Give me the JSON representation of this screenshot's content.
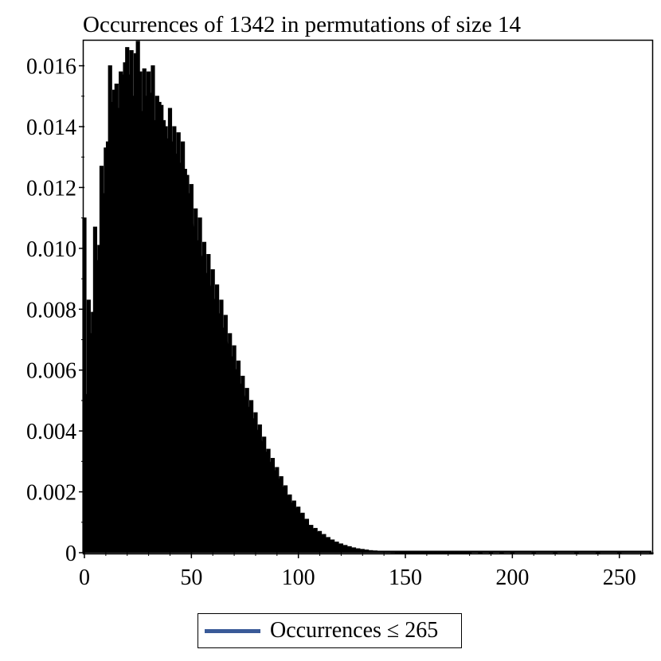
{
  "chart_data": {
    "type": "bar",
    "title": "Occurrences of 1342 in permutations of size 14",
    "xlabel": "",
    "ylabel": "",
    "xlim": [
      0,
      265
    ],
    "ylim": [
      0,
      0.0168
    ],
    "x_ticks": [
      0,
      50,
      100,
      150,
      200,
      250
    ],
    "x_tick_labels": [
      "0",
      "50",
      "100",
      "150",
      "200",
      "250"
    ],
    "y_ticks": [
      0,
      0.002,
      0.004,
      0.006,
      0.008,
      0.01,
      0.012,
      0.014,
      0.016
    ],
    "y_tick_labels": [
      "0",
      "0.002",
      "0.004",
      "0.006",
      "0.008",
      "0.010",
      "0.012",
      "0.014",
      "0.016"
    ],
    "bar_color": "#000000",
    "legend": {
      "label": "Occurrences ≤ 265",
      "color": "#3a5a98",
      "position": "bottom-center"
    },
    "grid": false,
    "series": [
      {
        "x": [
          0,
          1,
          2,
          3,
          4,
          5,
          6,
          7,
          8,
          9,
          10,
          11,
          12,
          13,
          14,
          15,
          16,
          17,
          18,
          19,
          20,
          21,
          22,
          23,
          24,
          25,
          26,
          27,
          28,
          29,
          30,
          31,
          32,
          33,
          34,
          35,
          36,
          37,
          38,
          39,
          40,
          41,
          42,
          43,
          44,
          45,
          46,
          47,
          48,
          49,
          50,
          52,
          54,
          56,
          58,
          60,
          62,
          64,
          66,
          68,
          70,
          72,
          74,
          76,
          78,
          80,
          82,
          84,
          86,
          88,
          90,
          92,
          94,
          96,
          98,
          100,
          102,
          104,
          106,
          108,
          110,
          112,
          114,
          116,
          118,
          120,
          122,
          124,
          126,
          128,
          130,
          132,
          134,
          136,
          138,
          140,
          142,
          144,
          146,
          148,
          150,
          152,
          154,
          156,
          158,
          160,
          162,
          164,
          166,
          168,
          170,
          172,
          174,
          176,
          178,
          180,
          185,
          190,
          195,
          200,
          210,
          220,
          230,
          240,
          250,
          265
        ],
        "values": [
          0.011,
          0.0052,
          0.0083,
          0.0072,
          0.0079,
          0.0107,
          0.0096,
          0.0101,
          0.0127,
          0.0118,
          0.0133,
          0.0135,
          0.016,
          0.0148,
          0.0152,
          0.0154,
          0.0146,
          0.0158,
          0.0157,
          0.0161,
          0.0166,
          0.0157,
          0.0165,
          0.015,
          0.0164,
          0.0168,
          0.0158,
          0.0145,
          0.0159,
          0.015,
          0.0158,
          0.0151,
          0.016,
          0.0142,
          0.015,
          0.0148,
          0.0147,
          0.0142,
          0.014,
          0.0136,
          0.0146,
          0.0135,
          0.014,
          0.0131,
          0.0138,
          0.0128,
          0.0135,
          0.0126,
          0.0124,
          0.0118,
          0.0121,
          0.0113,
          0.011,
          0.0102,
          0.0098,
          0.0093,
          0.0088,
          0.0083,
          0.0078,
          0.0072,
          0.0068,
          0.0063,
          0.0058,
          0.0054,
          0.005,
          0.0046,
          0.0042,
          0.0038,
          0.0034,
          0.0031,
          0.0028,
          0.0025,
          0.0022,
          0.0019,
          0.0017,
          0.0015,
          0.0013,
          0.0011,
          0.0009,
          0.0008,
          0.0007,
          0.0006,
          0.0005,
          0.00042,
          0.00035,
          0.00029,
          0.00024,
          0.0002,
          0.00016,
          0.00013,
          0.00011,
          9e-05,
          7e-05,
          6e-05,
          5e-05,
          4e-05,
          3e-05,
          2.5e-05,
          2e-05,
          1.5e-05,
          1e-05,
          8e-06,
          6e-06,
          5e-06,
          4e-06,
          3e-06,
          2e-06,
          2e-06,
          1e-06,
          1e-06,
          1e-06,
          8e-07,
          6e-07,
          5e-07,
          4e-07,
          3e-07,
          2e-07,
          1e-07,
          1e-07,
          5e-08,
          3e-08,
          2e-08,
          1e-08,
          5e-09,
          2e-09,
          5e-10
        ]
      }
    ]
  }
}
